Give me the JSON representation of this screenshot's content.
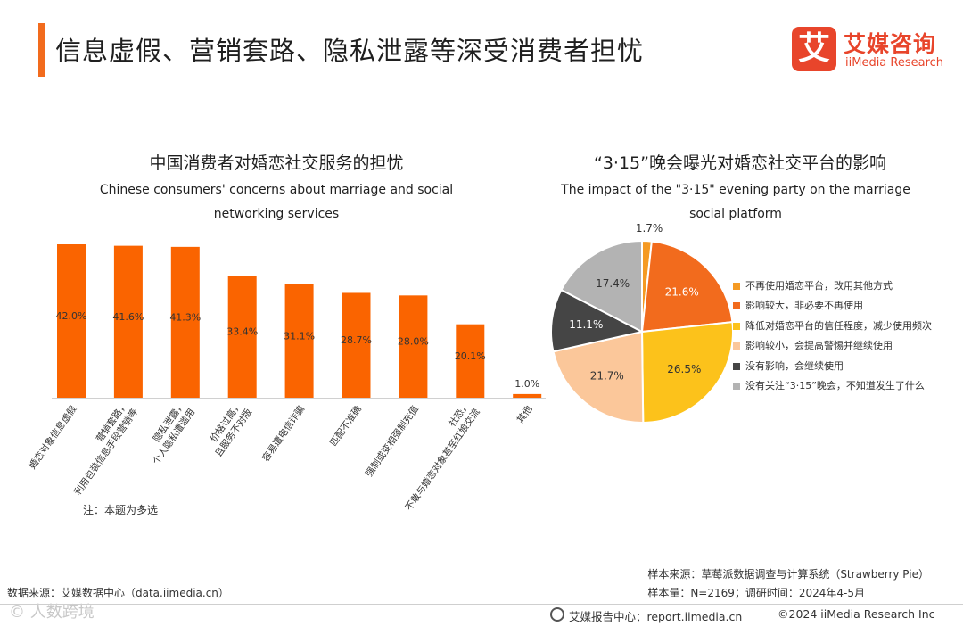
{
  "page_title": "信息虚假、营销套路、隐私泄露等深受消费者担忧",
  "logo": {
    "mark": "艾",
    "cn": "艾媒咨询",
    "en": "iiMedia Research"
  },
  "colors": {
    "accent": "#f26b1d",
    "bar": "#fa6400"
  },
  "chart_data": [
    {
      "type": "bar",
      "title": "中国消费者对婚恋社交服务的担忧",
      "subtitle": "Chinese consumers' concerns about marriage and social networking services",
      "categories": [
        "婚恋对象信息虚假",
        "营销套路，利用包装信息手段营销等",
        "隐私泄露，个人隐私遭滥用",
        "价格过高，且服务不对版",
        "容易遭电信诈骗",
        "匹配不准确",
        "强制或变相强制充值",
        "社恐，不敢与婚恋对象甚至红娘交流",
        "其他"
      ],
      "values": [
        42.0,
        41.6,
        41.3,
        33.4,
        31.1,
        28.7,
        28.0,
        20.1,
        1.0
      ],
      "value_labels": [
        "42.0%",
        "41.6%",
        "41.3%",
        "33.4%",
        "31.1%",
        "28.7%",
        "28.0%",
        "20.1%",
        "1.0%"
      ],
      "ylim": [
        0,
        42.0
      ],
      "grid": false
    },
    {
      "type": "pie",
      "title": "“3·15”晚会曝光对婚恋社交平台的影响",
      "subtitle": "The impact of the \"3·15\" evening party on the marriage social platform",
      "slices": [
        {
          "label": "不再使用婚恋平台，改用其他方式",
          "value": 1.7,
          "value_label": "1.7%",
          "color": "#f59a23"
        },
        {
          "label": "影响较大，非必要不再使用",
          "value": 21.6,
          "value_label": "21.6%",
          "color": "#f26b1d"
        },
        {
          "label": "降低对婚恋平台的信任程度，减少使用频次",
          "value": 26.5,
          "value_label": "26.5%",
          "color": "#fcc21b"
        },
        {
          "label": "影响较小，会提高警惕并继续使用",
          "value": 21.7,
          "value_label": "21.7%",
          "color": "#fbc79a"
        },
        {
          "label": "没有影响，会继续使用",
          "value": 11.1,
          "value_label": "11.1%",
          "color": "#454545"
        },
        {
          "label": "没有关注“3·15”晚会，不知道发生了什么",
          "value": 17.4,
          "value_label": "17.4%",
          "color": "#b3b3b3"
        }
      ],
      "legend_position": "right"
    }
  ],
  "note": "注：本题为多选",
  "sample_source": "样本来源：草莓派数据调查与计算系统（Strawberry Pie）",
  "sample_info": "样本量：N=2169；调研时间：2024年4-5月",
  "data_source": "数据来源：艾媒数据中心（data.iimedia.cn）",
  "watermark": "© 人数跨境",
  "footer": {
    "report": "艾媒报告中心：report.iimedia.cn",
    "copyright": "©2024  iiMedia Research Inc"
  }
}
